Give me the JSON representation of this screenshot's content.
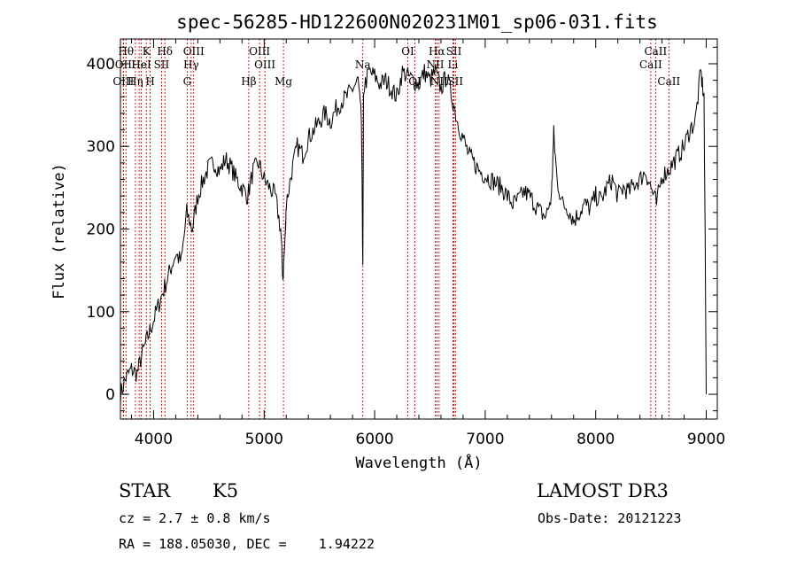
{
  "chart_data": {
    "type": "line",
    "title": "spec-56285-HD122600N020231M01_sp06-031.fits",
    "xlabel": "Wavelength (Å)",
    "ylabel": "Flux (relative)",
    "xlim": [
      3700,
      9100
    ],
    "ylim": [
      -30,
      430
    ],
    "xticks": [
      4000,
      5000,
      6000,
      7000,
      8000,
      9000
    ],
    "yticks": [
      0,
      100,
      200,
      300,
      400
    ],
    "grid": false,
    "series": [
      {
        "x": [
          3700,
          3750,
          3800,
          3850,
          3900,
          3950,
          4000,
          4050,
          4100,
          4150,
          4200,
          4250,
          4300,
          4350,
          4400,
          4450,
          4500,
          4550,
          4600,
          4650,
          4700,
          4750,
          4800,
          4850,
          4900,
          4950,
          5000,
          5050,
          5100,
          5150,
          5170,
          5190,
          5200,
          5250,
          5300,
          5350,
          5400,
          5450,
          5500,
          5550,
          5600,
          5650,
          5700,
          5750,
          5800,
          5850,
          5880,
          5893,
          5900,
          5950,
          6000,
          6050,
          6100,
          6150,
          6200,
          6250,
          6300,
          6350,
          6400,
          6450,
          6500,
          6550,
          6600,
          6650,
          6700,
          6750,
          6800,
          6850,
          6900,
          6950,
          7000,
          7050,
          7100,
          7150,
          7200,
          7250,
          7300,
          7350,
          7400,
          7450,
          7500,
          7550,
          7600,
          7620,
          7650,
          7700,
          7750,
          7800,
          7850,
          7900,
          7950,
          8000,
          8050,
          8100,
          8150,
          8200,
          8250,
          8300,
          8350,
          8400,
          8450,
          8500,
          8550,
          8600,
          8650,
          8700,
          8750,
          8800,
          8850,
          8900,
          8950,
          8980,
          9000
        ],
        "y": [
          0,
          20,
          30,
          25,
          50,
          70,
          90,
          110,
          130,
          150,
          170,
          160,
          220,
          200,
          240,
          260,
          275,
          280,
          270,
          285,
          275,
          260,
          250,
          240,
          270,
          280,
          260,
          250,
          240,
          200,
          140,
          190,
          230,
          270,
          300,
          290,
          310,
          320,
          330,
          340,
          330,
          345,
          355,
          360,
          370,
          380,
          330,
          160,
          370,
          390,
          385,
          375,
          380,
          370,
          360,
          390,
          385,
          380,
          375,
          390,
          380,
          390,
          370,
          385,
          360,
          330,
          310,
          290,
          280,
          270,
          265,
          260,
          255,
          250,
          240,
          230,
          235,
          245,
          240,
          230,
          220,
          215,
          240,
          315,
          260,
          230,
          225,
          210,
          220,
          230,
          225,
          240,
          235,
          250,
          260,
          240,
          250,
          245,
          255,
          260,
          270,
          250,
          230,
          265,
          270,
          280,
          290,
          300,
          320,
          330,
          390,
          360,
          0
        ]
      }
    ],
    "spectral_lines": [
      {
        "wl": 3750,
        "label": "Hθ",
        "row": 1
      },
      {
        "wl": 3727,
        "label": "OII",
        "row": 2
      },
      {
        "wl": 3727,
        "label": "OIII",
        "row": 3
      },
      {
        "wl": 3835,
        "label": "Hη",
        "row": 3
      },
      {
        "wl": 3869,
        "label": "He",
        "row": 2
      },
      {
        "wl": 3889,
        "label": "HeI",
        "row": 2
      },
      {
        "wl": 3934,
        "label": "K",
        "row": 1
      },
      {
        "wl": 3969,
        "label": "H",
        "row": 3
      },
      {
        "wl": 4072,
        "label": "SII",
        "row": 2
      },
      {
        "wl": 4102,
        "label": "Hδ",
        "row": 1
      },
      {
        "wl": 4304,
        "label": "G",
        "row": 3
      },
      {
        "wl": 4340,
        "label": "Hγ",
        "row": 2
      },
      {
        "wl": 4363,
        "label": "OIII",
        "row": 1
      },
      {
        "wl": 4861,
        "label": "Hβ",
        "row": 3
      },
      {
        "wl": 4959,
        "label": "OIII",
        "row": 1
      },
      {
        "wl": 5007,
        "label": "OIII",
        "row": 2
      },
      {
        "wl": 5175,
        "label": "Mg",
        "row": 3
      },
      {
        "wl": 5893,
        "label": "Na",
        "row": 2
      },
      {
        "wl": 6300,
        "label": "OI",
        "row": 1
      },
      {
        "wl": 6364,
        "label": "OI",
        "row": 3
      },
      {
        "wl": 6548,
        "label": "NII",
        "row": 2
      },
      {
        "wl": 6563,
        "label": "Hα",
        "row": 1
      },
      {
        "wl": 6583,
        "label": "NII",
        "row": 3
      },
      {
        "wl": 6708,
        "label": "Li",
        "row": 2
      },
      {
        "wl": 6717,
        "label": "SII",
        "row": 1
      },
      {
        "wl": 6731,
        "label": "SII",
        "row": 3
      },
      {
        "wl": 8498,
        "label": "CaII",
        "row": 2
      },
      {
        "wl": 8542,
        "label": "CaII",
        "row": 1
      },
      {
        "wl": 8662,
        "label": "CaII",
        "row": 3
      }
    ]
  },
  "info": {
    "object_class": "STAR",
    "subclass": "K5",
    "survey": "LAMOST DR3",
    "cz": "cz = 2.7 ± 0.8 km/s",
    "obs_date": "Obs-Date: 20121223",
    "coords": "RA = 188.05030, DEC =    1.94222"
  },
  "colors": {
    "line": "#000000",
    "marker": "#cc0000"
  }
}
